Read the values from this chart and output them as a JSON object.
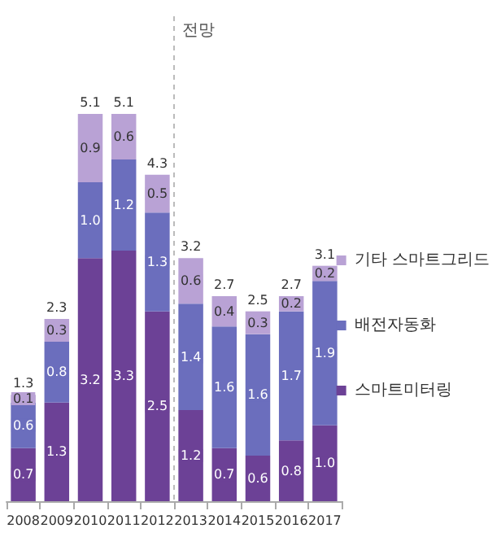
{
  "chart_data": {
    "type": "bar",
    "stacked": true,
    "categories": [
      "2008",
      "2009",
      "2010",
      "2011",
      "2012",
      "2013",
      "2014",
      "2015",
      "2016",
      "2017"
    ],
    "series": [
      {
        "name": "스마트미터링",
        "color": "#6c4196",
        "values": [
          0.7,
          1.3,
          3.2,
          3.3,
          2.5,
          1.2,
          0.7,
          0.6,
          0.8,
          1.0
        ],
        "value_labels": [
          "0.7",
          "1.3",
          "3.2",
          "3.3",
          "2.5",
          "1.2",
          "0.7",
          "0.6",
          "0.8",
          "1.0"
        ]
      },
      {
        "name": "배전자동화",
        "color": "#6b6ebd",
        "values": [
          0.6,
          0.8,
          1.0,
          1.2,
          1.3,
          1.4,
          1.6,
          1.6,
          1.7,
          1.9
        ],
        "value_labels": [
          "0.6",
          "0.8",
          "1.0",
          "1.2",
          "1.3",
          "1.4",
          "1.6",
          "1.6",
          "1.7",
          "1.9"
        ]
      },
      {
        "name": "기타 스마트그리드",
        "color": "#b9a2d5",
        "values": [
          0.1,
          0.3,
          0.9,
          0.6,
          0.5,
          0.6,
          0.4,
          0.3,
          0.2,
          0.2
        ],
        "value_labels": [
          "0.1",
          "0.3",
          "0.9",
          "0.6",
          "0.5",
          "0.6",
          "0.4",
          "0.3",
          "0.2",
          "0.2"
        ]
      }
    ],
    "totals": [
      "1.3",
      "2.3",
      "5.1",
      "5.1",
      "4.3",
      "3.2",
      "2.7",
      "2.5",
      "2.7",
      "3.1"
    ],
    "tick_labels": "x",
    "legend": "right",
    "marker": "square",
    "annotations": [
      "전망"
    ]
  }
}
